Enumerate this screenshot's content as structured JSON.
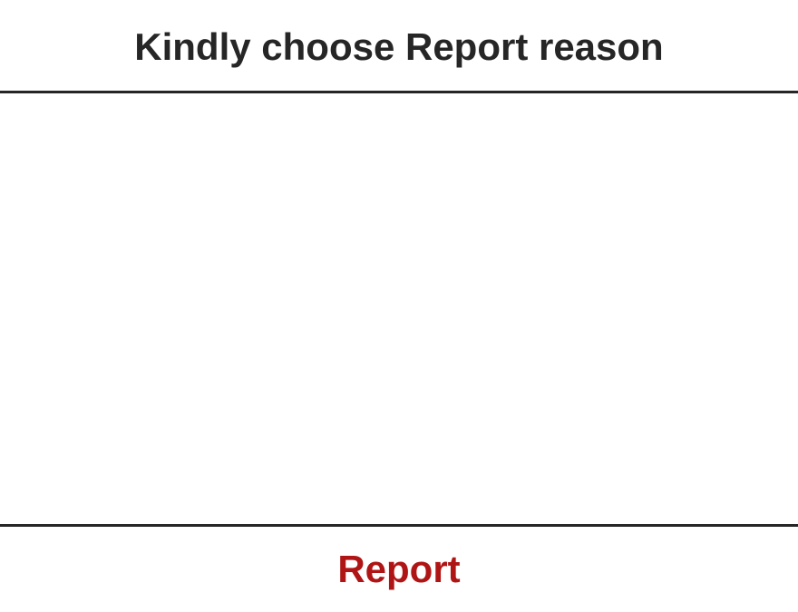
{
  "dialog": {
    "title": "Kindly choose Report reason",
    "reasons": [],
    "report_button_label": "Report"
  },
  "colors": {
    "title_text": "#262626",
    "divider": "#262626",
    "report_button_text": "#B01515",
    "background": "#FFFFFF"
  }
}
